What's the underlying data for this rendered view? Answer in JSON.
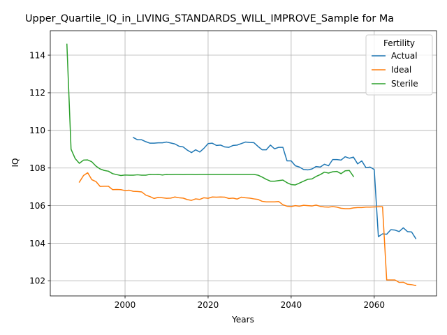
{
  "chart_data": {
    "type": "line",
    "title": "Upper_Quartile_IQ_in_LIVING_STANDARDS_WILL_IMPROVE_Sample for Ma",
    "xlabel": "Years",
    "ylabel": "IQ",
    "xlim": [
      1982,
      2075
    ],
    "ylim": [
      101.2,
      115.3
    ],
    "xticks": [
      2000,
      2020,
      2040,
      2060
    ],
    "yticks": [
      102,
      104,
      106,
      108,
      110,
      112,
      114
    ],
    "grid": true,
    "legend": {
      "title": "Fertility",
      "placement": "top-right"
    },
    "series": [
      {
        "name": "Actual",
        "color": "#1f77b4",
        "x": [
          2002,
          2003,
          2004,
          2005,
          2006,
          2007,
          2008,
          2009,
          2010,
          2011,
          2012,
          2013,
          2014,
          2015,
          2016,
          2017,
          2018,
          2019,
          2020,
          2021,
          2022,
          2023,
          2024,
          2025,
          2026,
          2027,
          2028,
          2029,
          2030,
          2031,
          2032,
          2033,
          2034,
          2035,
          2036,
          2037,
          2038,
          2039,
          2040,
          2041,
          2042,
          2043,
          2044,
          2045,
          2046,
          2047,
          2048,
          2049,
          2050,
          2051,
          2052,
          2053,
          2054,
          2055,
          2056,
          2057,
          2058,
          2059,
          2060,
          2061,
          2062,
          2063,
          2064,
          2065,
          2066,
          2067,
          2068,
          2069,
          2070
        ],
        "y": [
          109.62,
          109.5,
          109.5,
          109.4,
          109.32,
          109.32,
          109.34,
          109.34,
          109.38,
          109.33,
          109.28,
          109.16,
          109.12,
          108.95,
          108.82,
          108.97,
          108.85,
          109.05,
          109.3,
          109.32,
          109.2,
          109.22,
          109.12,
          109.1,
          109.2,
          109.22,
          109.3,
          109.38,
          109.36,
          109.35,
          109.15,
          108.97,
          108.97,
          109.22,
          109.02,
          109.1,
          109.1,
          108.38,
          108.38,
          108.12,
          108.05,
          107.92,
          107.9,
          107.95,
          108.08,
          108.05,
          108.2,
          108.12,
          108.45,
          108.45,
          108.42,
          108.6,
          108.52,
          108.58,
          108.22,
          108.38,
          108.02,
          108.05,
          107.92,
          104.35,
          104.5,
          104.48,
          104.72,
          104.7,
          104.62,
          104.82,
          104.62,
          104.6,
          104.25
        ]
      },
      {
        "name": "Ideal",
        "color": "#ff7f0e",
        "x": [
          1989,
          1990,
          1991,
          1992,
          1993,
          1994,
          1995,
          1996,
          1997,
          1998,
          1999,
          2000,
          2001,
          2002,
          2003,
          2004,
          2005,
          2006,
          2007,
          2008,
          2009,
          2010,
          2011,
          2012,
          2013,
          2014,
          2015,
          2016,
          2017,
          2018,
          2019,
          2020,
          2021,
          2022,
          2023,
          2024,
          2025,
          2026,
          2027,
          2028,
          2029,
          2030,
          2031,
          2032,
          2033,
          2034,
          2035,
          2036,
          2037,
          2038,
          2039,
          2040,
          2041,
          2042,
          2043,
          2044,
          2045,
          2046,
          2047,
          2048,
          2049,
          2050,
          2051,
          2052,
          2053,
          2054,
          2055,
          2056,
          2057,
          2058,
          2059,
          2060,
          2061,
          2062,
          2063,
          2064,
          2065,
          2066,
          2067,
          2068,
          2069,
          2070
        ],
        "y": [
          107.25,
          107.6,
          107.75,
          107.38,
          107.28,
          107.02,
          107.03,
          107.03,
          106.85,
          106.86,
          106.85,
          106.8,
          106.82,
          106.76,
          106.75,
          106.73,
          106.56,
          106.48,
          106.38,
          106.44,
          106.42,
          106.39,
          106.4,
          106.46,
          106.42,
          106.4,
          106.32,
          106.28,
          106.36,
          106.33,
          106.42,
          106.39,
          106.46,
          106.45,
          106.46,
          106.45,
          106.38,
          106.4,
          106.35,
          106.45,
          106.42,
          106.4,
          106.36,
          106.33,
          106.23,
          106.2,
          106.2,
          106.2,
          106.22,
          106.05,
          105.97,
          105.95,
          106.0,
          105.97,
          106.02,
          106.0,
          105.98,
          106.03,
          105.96,
          105.93,
          105.92,
          105.95,
          105.92,
          105.86,
          105.84,
          105.84,
          105.88,
          105.9,
          105.9,
          105.92,
          105.92,
          105.93,
          105.94,
          105.94,
          102.05,
          102.05,
          102.05,
          101.92,
          101.93,
          101.82,
          101.8,
          101.75
        ]
      },
      {
        "name": "Sterile",
        "color": "#2ca02c",
        "x": [
          1986,
          1987,
          1988,
          1989,
          1990,
          1991,
          1992,
          1993,
          1994,
          1995,
          1996,
          1997,
          1998,
          1999,
          2000,
          2001,
          2002,
          2003,
          2004,
          2005,
          2006,
          2007,
          2008,
          2009,
          2010,
          2011,
          2012,
          2013,
          2014,
          2015,
          2016,
          2017,
          2018,
          2019,
          2020,
          2021,
          2022,
          2023,
          2024,
          2025,
          2026,
          2027,
          2028,
          2029,
          2030,
          2031,
          2032,
          2033,
          2034,
          2035,
          2036,
          2037,
          2038,
          2039,
          2040,
          2041,
          2042,
          2043,
          2044,
          2045,
          2046,
          2047,
          2048,
          2049,
          2050,
          2051,
          2052,
          2053,
          2054,
          2055
        ],
        "y": [
          114.58,
          109.0,
          108.5,
          108.25,
          108.42,
          108.43,
          108.33,
          108.1,
          107.95,
          107.87,
          107.83,
          107.7,
          107.65,
          107.6,
          107.63,
          107.62,
          107.62,
          107.64,
          107.62,
          107.62,
          107.66,
          107.65,
          107.66,
          107.63,
          107.66,
          107.65,
          107.66,
          107.66,
          107.65,
          107.66,
          107.66,
          107.65,
          107.66,
          107.66,
          107.66,
          107.66,
          107.66,
          107.66,
          107.66,
          107.66,
          107.66,
          107.66,
          107.66,
          107.66,
          107.66,
          107.66,
          107.62,
          107.52,
          107.4,
          107.3,
          107.3,
          107.33,
          107.36,
          107.22,
          107.12,
          107.1,
          107.2,
          107.3,
          107.4,
          107.42,
          107.55,
          107.65,
          107.78,
          107.73,
          107.8,
          107.82,
          107.7,
          107.85,
          107.87,
          107.55
        ]
      }
    ]
  }
}
